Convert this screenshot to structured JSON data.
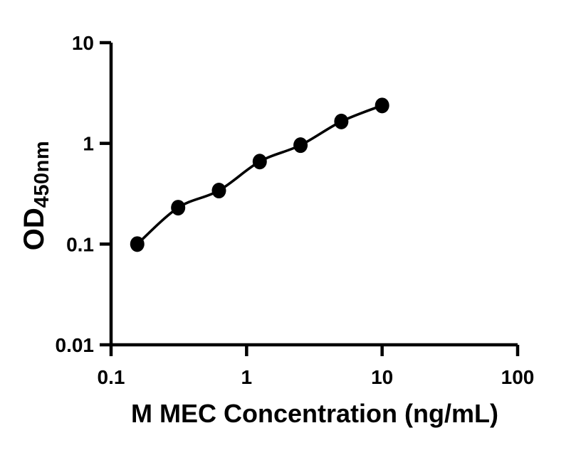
{
  "chart_data": {
    "type": "scatter",
    "x": [
      0.156,
      0.3125,
      0.625,
      1.25,
      2.5,
      5,
      10
    ],
    "y": [
      0.1,
      0.23,
      0.34,
      0.66,
      0.96,
      1.65,
      2.38
    ],
    "line_through_points": true,
    "title": "",
    "xlabel": "M MEC Concentration (ng/mL)",
    "ylabel": "OD",
    "ylabel_sub": "450nm",
    "x_scale": "log",
    "y_scale": "log",
    "xlim": [
      0.1,
      100
    ],
    "ylim": [
      0.01,
      10
    ],
    "x_ticks": [
      0.1,
      1,
      10,
      100
    ],
    "x_tick_labels": [
      "0.1",
      "1",
      "10",
      "100"
    ],
    "y_ticks": [
      0.01,
      0.1,
      1,
      10
    ],
    "y_tick_labels": [
      "0.01",
      "0.1",
      "1",
      "10"
    ],
    "grid": false,
    "legend_position": "none",
    "marker_color": "#000000",
    "line_color": "#000000",
    "axis_color": "#000000",
    "background_color": "#ffffff"
  }
}
